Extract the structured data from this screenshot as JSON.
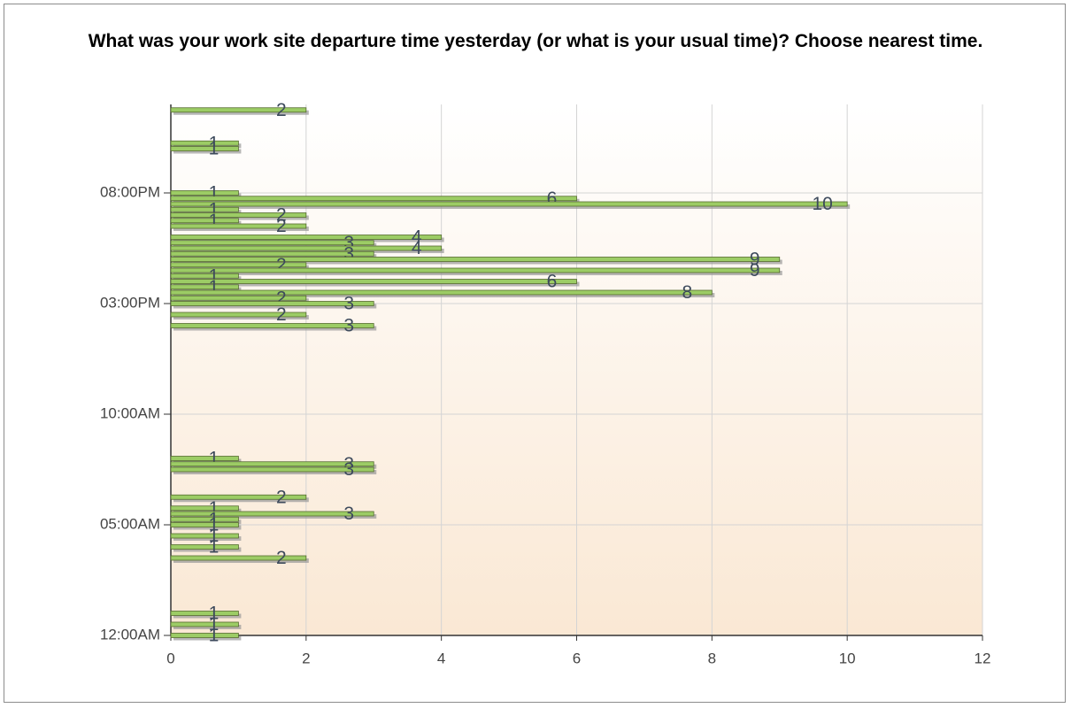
{
  "chart_data": {
    "type": "bar",
    "orientation": "horizontal",
    "title": "What was your work site departure time yesterday (or what is your usual time)? Choose nearest time.",
    "y": [
      1425,
      1335,
      1320,
      1200,
      1185,
      1170,
      1155,
      1140,
      1125,
      1110,
      1080,
      1065,
      1050,
      1035,
      1020,
      1005,
      990,
      975,
      960,
      945,
      930,
      915,
      900,
      870,
      840,
      480,
      465,
      450,
      375,
      345,
      330,
      315,
      300,
      270,
      240,
      210,
      60,
      30,
      0
    ],
    "values": [
      2,
      1,
      1,
      1,
      6,
      10,
      1,
      2,
      1,
      2,
      4,
      3,
      4,
      3,
      9,
      2,
      9,
      1,
      6,
      1,
      8,
      2,
      3,
      2,
      3,
      1,
      3,
      3,
      2,
      1,
      3,
      1,
      1,
      1,
      1,
      2,
      1,
      1,
      1
    ],
    "color": "#9ccc65",
    "xlim": [
      0,
      12
    ],
    "xticks": [
      0,
      2,
      4,
      6,
      8,
      10,
      12
    ],
    "ylim": [
      0,
      1440
    ],
    "yticks": [
      {
        "value": 0,
        "label": "12:00AM"
      },
      {
        "value": 300,
        "label": "05:00AM"
      },
      {
        "value": 600,
        "label": "10:00AM"
      },
      {
        "value": 900,
        "label": "03:00PM"
      },
      {
        "value": 1200,
        "label": "08:00PM"
      }
    ],
    "grid": true
  }
}
